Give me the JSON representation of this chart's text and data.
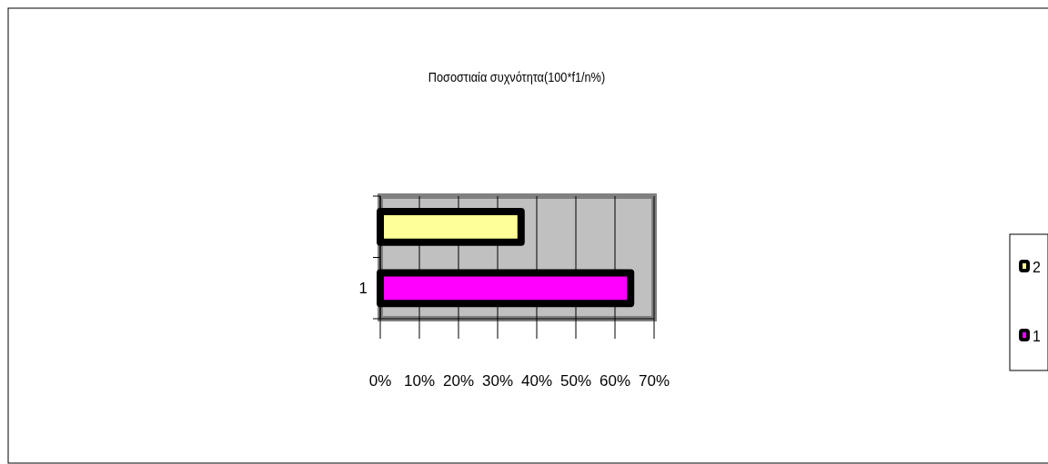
{
  "chart_data": {
    "type": "bar",
    "orientation": "horizontal",
    "title": "Ποσοστιαία συχνότητα(100*f1/n%)",
    "categories": [
      null,
      "1"
    ],
    "series": [
      {
        "name": "2",
        "color": "#ffff99",
        "values": [
          36,
          null
        ]
      },
      {
        "name": "1",
        "color": "#ff00ff",
        "values": [
          null,
          64
        ]
      }
    ],
    "xlim": [
      0,
      70
    ],
    "xticks": [
      {
        "value": 0,
        "label": "0%"
      },
      {
        "value": 10,
        "label": "10%"
      },
      {
        "value": 20,
        "label": "20%"
      },
      {
        "value": 30,
        "label": "30%"
      },
      {
        "value": 40,
        "label": "40%"
      },
      {
        "value": 50,
        "label": "50%"
      },
      {
        "value": 60,
        "label": "60%"
      },
      {
        "value": 70,
        "label": "70%"
      }
    ],
    "grid": "x",
    "legend": "right"
  }
}
